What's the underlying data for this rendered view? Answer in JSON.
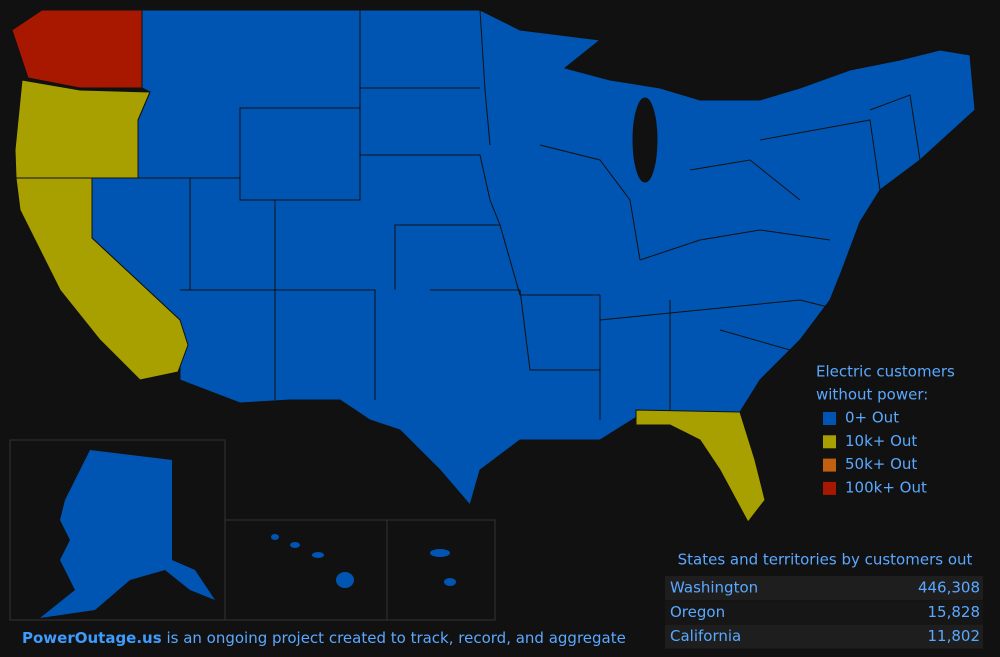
{
  "legend": {
    "title": [
      "Electric customers",
      "without power:"
    ],
    "items": [
      {
        "label": "0+ Out",
        "color": "#0055b3"
      },
      {
        "label": "10k+ Out",
        "color": "#a8a000"
      },
      {
        "label": "50k+ Out",
        "color": "#c06010"
      },
      {
        "label": "100k+ Out",
        "color": "#a81800"
      }
    ]
  },
  "table": {
    "title": "States and territories by customers out",
    "rows": [
      [
        "Washington",
        "446,308"
      ],
      [
        "Oregon",
        "15,828"
      ],
      [
        "California",
        "11,802"
      ]
    ]
  },
  "footer": {
    "link": "PowerOutage.us",
    "text": " is an ongoing project created to track, record, and aggregate"
  }
}
